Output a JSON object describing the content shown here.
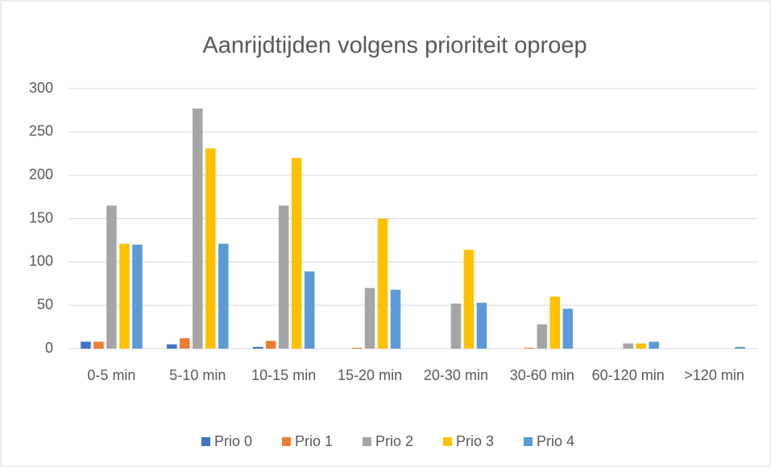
{
  "chart_data": {
    "type": "bar",
    "title": "Aanrijdtijden volgens prioriteit oproep",
    "categories": [
      "0-5 min",
      "5-10 min",
      "10-15 min",
      "15-20 min",
      "20-30 min",
      "30-60 min",
      "60-120 min",
      ">120 min"
    ],
    "series": [
      {
        "name": "Prio 0",
        "color": "#4472c4",
        "values": [
          8,
          5,
          2,
          0,
          0,
          0,
          0,
          0
        ]
      },
      {
        "name": "Prio 1",
        "color": "#ed7d31",
        "values": [
          8,
          12,
          9,
          1,
          0,
          1,
          0,
          0
        ]
      },
      {
        "name": "Prio 2",
        "color": "#a5a5a5",
        "values": [
          165,
          277,
          165,
          70,
          52,
          28,
          6,
          0
        ]
      },
      {
        "name": "Prio 3",
        "color": "#ffc000",
        "values": [
          121,
          231,
          220,
          150,
          114,
          60,
          6,
          0
        ]
      },
      {
        "name": "Prio 4",
        "color": "#5b9bd5",
        "values": [
          120,
          121,
          89,
          68,
          53,
          46,
          8,
          2
        ]
      }
    ],
    "ylim": [
      0,
      300
    ],
    "yticks": [
      0,
      50,
      100,
      150,
      200,
      250,
      300
    ],
    "grid": true,
    "legend": "bottom"
  }
}
